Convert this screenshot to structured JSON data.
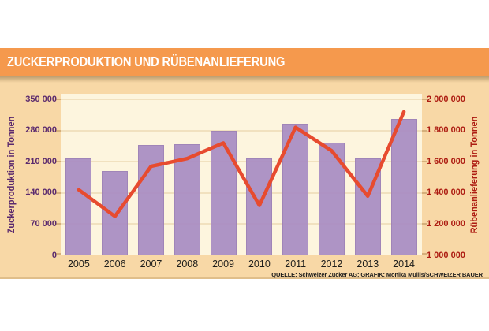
{
  "header": {
    "title": "ZUCKERPRODUKTION UND RÜBENANLIEFERUNG"
  },
  "source": "QUELLE: Schweizer Zucker AG; GRAFIK: Monika Mullis/SCHWEIZER BAUER",
  "colors": {
    "title_bar_bg": "#F5994D",
    "card_bg": "#F8D8A6",
    "plot_bg": "#FDF5DE",
    "gridline": "#F1E1BF",
    "bar": "#A98DC4",
    "bar_edge": "#9A7DB6",
    "line": "#E74B2F",
    "left_axis_text": "#5B2A6E",
    "right_axis_text": "#AD1C12",
    "year_text": "#1D1D1B",
    "title_text": "#FFFFFF"
  },
  "chart_data": {
    "type": "bar",
    "subtype": "bar-and-line-dual-axis",
    "title": "ZUCKERPRODUKTION UND RÜBENANLIEFERUNG",
    "categories": [
      "2005",
      "2006",
      "2007",
      "2008",
      "2009",
      "2010",
      "2011",
      "2012",
      "2013",
      "2014"
    ],
    "series": [
      {
        "name": "Zuckerproduktion",
        "type": "bar",
        "axis": "left",
        "color": "#A98DC4",
        "values": [
          218000,
          190000,
          247000,
          250000,
          280000,
          218000,
          295000,
          252000,
          218000,
          305000
        ]
      },
      {
        "name": "Rübenanlieferung",
        "type": "line",
        "axis": "right",
        "color": "#E74B2F",
        "values": [
          1420000,
          1250000,
          1570000,
          1620000,
          1720000,
          1320000,
          1820000,
          1670000,
          1380000,
          1920000
        ]
      }
    ],
    "left_axis": {
      "label": "Zuckerproduktion in Tonnen",
      "min": 0,
      "max": 350000,
      "step": 70000,
      "tick_labels": [
        "0",
        "70 000",
        "140 000",
        "210 000",
        "280 000",
        "350 000"
      ],
      "color": "#5B2A6E"
    },
    "right_axis": {
      "label": "Rübenanlieferung in Tonnen",
      "min": 1000000,
      "max": 2000000,
      "step": 200000,
      "tick_labels": [
        "1 000 000",
        "1 200 000",
        "1 400 000",
        "1 600 000",
        "1 800 000",
        "2 000 000"
      ],
      "color": "#AD1C12"
    },
    "grid": true,
    "legend": "none"
  }
}
